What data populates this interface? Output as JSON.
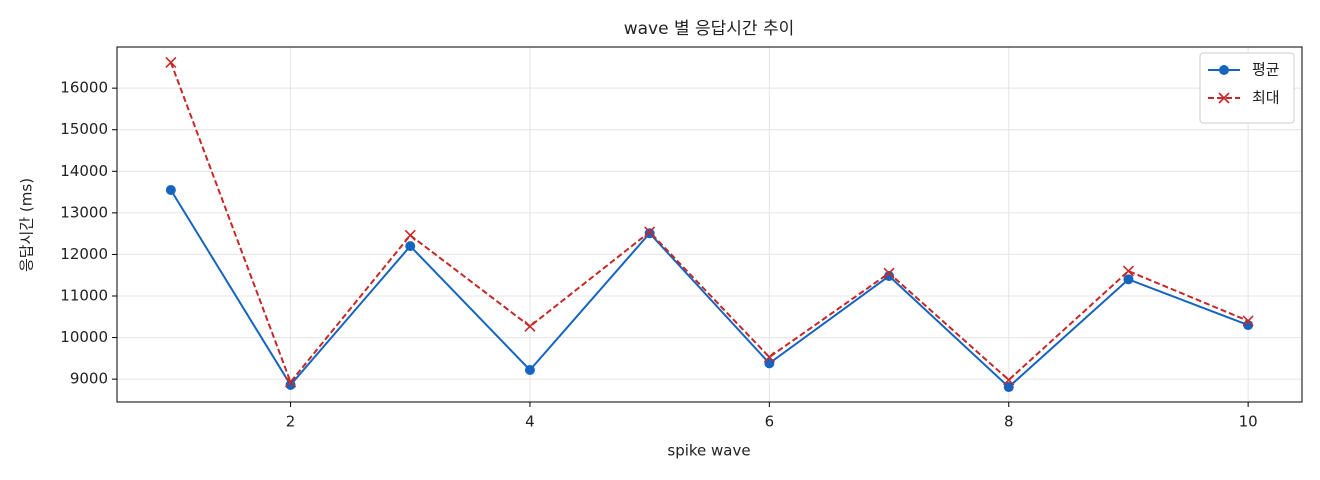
{
  "chart_data": {
    "type": "line",
    "title": "wave 별 응답시간 추이",
    "x_label": "spike wave",
    "y_label": "응답시간 (ms)",
    "x": [
      1,
      2,
      3,
      4,
      5,
      6,
      7,
      8,
      9,
      10
    ],
    "series": [
      {
        "name": "평균",
        "color": "#1565c0",
        "marker": "o",
        "linestyle": "solid",
        "values": [
          13550,
          8860,
          12200,
          9220,
          12510,
          9380,
          11480,
          8810,
          11400,
          10300
        ]
      },
      {
        "name": "최대",
        "color": "#c62828",
        "marker": "x",
        "linestyle": "dashed",
        "values": [
          16620,
          8930,
          12460,
          10270,
          12540,
          9530,
          11550,
          8980,
          11600,
          10400
        ]
      }
    ],
    "xlim": [
      0.55,
      10.45
    ],
    "ylim": [
      8450,
      16990
    ],
    "xticks": [
      2,
      4,
      6,
      8,
      10
    ],
    "yticks": [
      9000,
      10000,
      11000,
      12000,
      13000,
      14000,
      15000,
      16000
    ],
    "grid": true,
    "legend": "upper right"
  }
}
